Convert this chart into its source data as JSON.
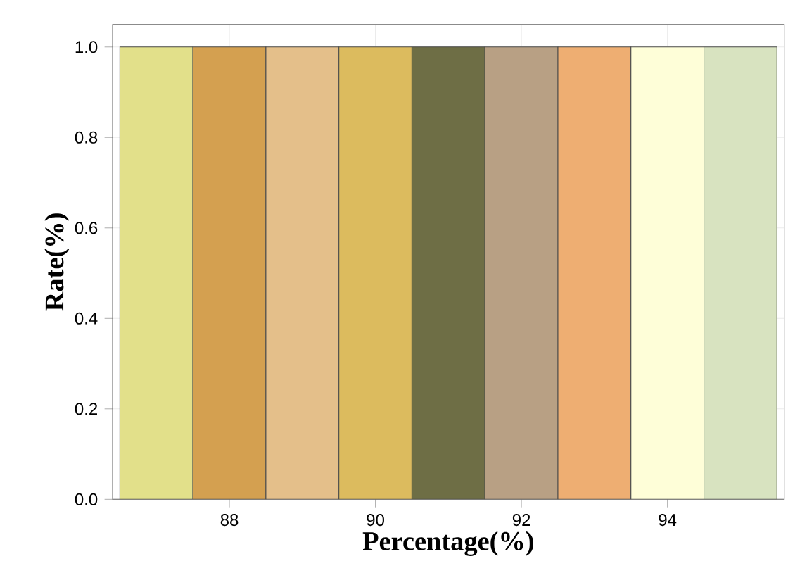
{
  "chart_data": {
    "type": "histogram",
    "xlabel": "Percentage(%)",
    "ylabel": "Rate(%)",
    "bins": [
      86.5,
      87.5,
      88.5,
      89.5,
      90.5,
      91.5,
      92.5,
      93.5,
      94.5,
      95.5
    ],
    "values": [
      1.0,
      1.0,
      1.0,
      1.0,
      1.0,
      1.0,
      1.0,
      1.0,
      1.0
    ],
    "colors": [
      "#e2e08a",
      "#d4a050",
      "#e4bf8a",
      "#dcbb5e",
      "#6e6e45",
      "#b8a084",
      "#eeae72",
      "#fefed8",
      "#d8e3c0"
    ],
    "xlim": [
      86.4,
      95.6
    ],
    "ylim": [
      0,
      1.05
    ],
    "xticks": [
      88,
      90,
      92,
      94
    ],
    "yticks": [
      {
        "value": 0,
        "label": "0.0"
      },
      {
        "value": 0.2,
        "label": "0.2"
      },
      {
        "value": 0.4,
        "label": "0.4"
      },
      {
        "value": 0.6,
        "label": "0.6"
      },
      {
        "value": 0.8,
        "label": "0.8"
      },
      {
        "value": 1.0,
        "label": "1.0"
      }
    ],
    "grid": true
  }
}
